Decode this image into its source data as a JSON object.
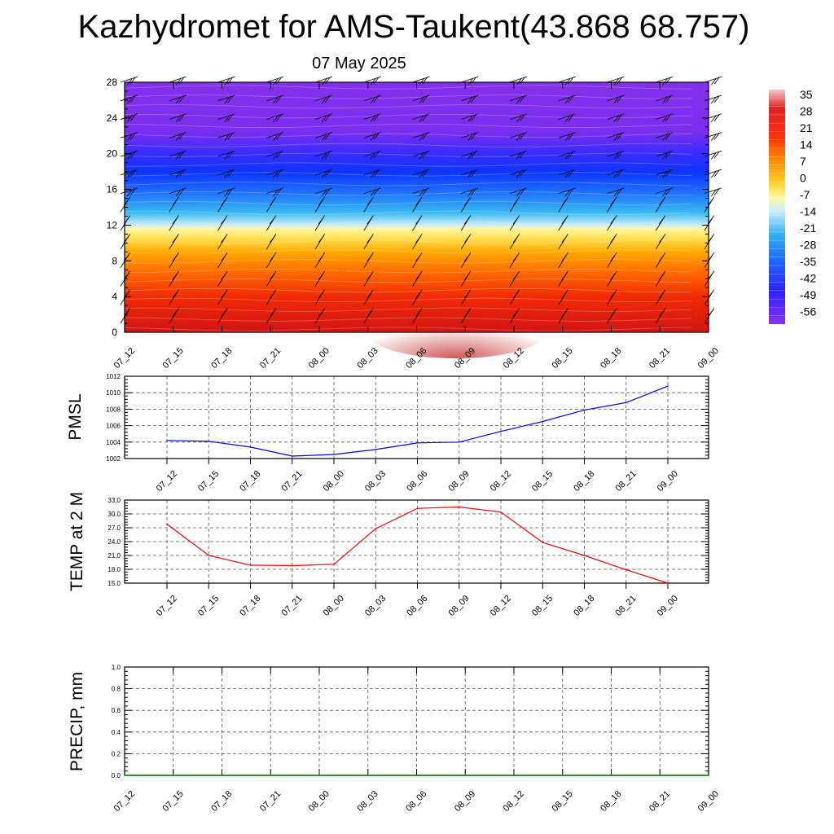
{
  "header": {
    "title": "Kazhydromet for AMS-Taukent(43.868 68.757)",
    "date": "07 May 2025"
  },
  "colors": {
    "pmsl_line": "#0000ff",
    "temp_line": "#ff0000",
    "precip_line": "#008000",
    "grid": "#555555",
    "axis": "#000000"
  },
  "chart_data": [
    {
      "type": "heatmap",
      "name": "cross-section",
      "categories": [
        "07_12",
        "07_15",
        "07_18",
        "07_21",
        "08_00",
        "08_03",
        "08_06",
        "08_09",
        "08_12",
        "08_15",
        "08_18",
        "08_21",
        "09_00"
      ],
      "ylim": [
        0,
        28
      ],
      "yticks": [
        0,
        4,
        8,
        12,
        16,
        20,
        24,
        28
      ],
      "colorbar": {
        "labels": [
          "35",
          "28",
          "21",
          "14",
          "7",
          "0",
          "-7",
          "-14",
          "-21",
          "-28",
          "-35",
          "-42",
          "-49",
          "-56"
        ],
        "range": [
          -60,
          38
        ]
      },
      "grid": false,
      "wind_barbs": true
    },
    {
      "type": "line",
      "ylabel": "PMSL",
      "categories": [
        "07_12",
        "07_15",
        "07_18",
        "07_21",
        "08_00",
        "08_03",
        "08_06",
        "08_09",
        "08_12",
        "08_15",
        "08_18",
        "08_21",
        "09_00"
      ],
      "values": [
        1004.2,
        1004.1,
        1003.4,
        1002.3,
        1002.5,
        1003.1,
        1003.9,
        1004.0,
        1005.3,
        1006.5,
        1007.9,
        1008.8,
        1010.8
      ],
      "ylim": [
        1002,
        1012
      ],
      "yticks": [
        "1002",
        "1004",
        "1006",
        "1008",
        "1010",
        "1012"
      ],
      "grid": true
    },
    {
      "type": "line",
      "ylabel": "TEMP at 2 M",
      "categories": [
        "07_12",
        "07_15",
        "07_18",
        "07_21",
        "08_00",
        "08_03",
        "08_06",
        "08_09",
        "08_12",
        "08_15",
        "08_18",
        "08_21",
        "09_00"
      ],
      "values": [
        27.8,
        21.0,
        18.9,
        18.8,
        19.1,
        26.8,
        31.2,
        31.5,
        30.4,
        23.8,
        21.0,
        17.9,
        15.0
      ],
      "ylim": [
        15,
        33
      ],
      "yticks": [
        "15.0",
        "18.0",
        "21.0",
        "24.0",
        "27.0",
        "30.0",
        "33.0"
      ],
      "grid": true
    },
    {
      "type": "line",
      "ylabel": "PRECIP, mm",
      "categories": [
        "07_12",
        "07_15",
        "07_18",
        "07_21",
        "08_00",
        "08_03",
        "08_06",
        "08_09",
        "08_12",
        "08_15",
        "08_18",
        "08_21",
        "09_00"
      ],
      "values": [
        0,
        0,
        0,
        0,
        0,
        0,
        0,
        0,
        0,
        0,
        0,
        0,
        0
      ],
      "ylim": [
        0,
        1
      ],
      "yticks": [
        "0.0",
        "0.2",
        "0.4",
        "0.6",
        "0.8",
        "1.0"
      ],
      "grid": true
    }
  ]
}
